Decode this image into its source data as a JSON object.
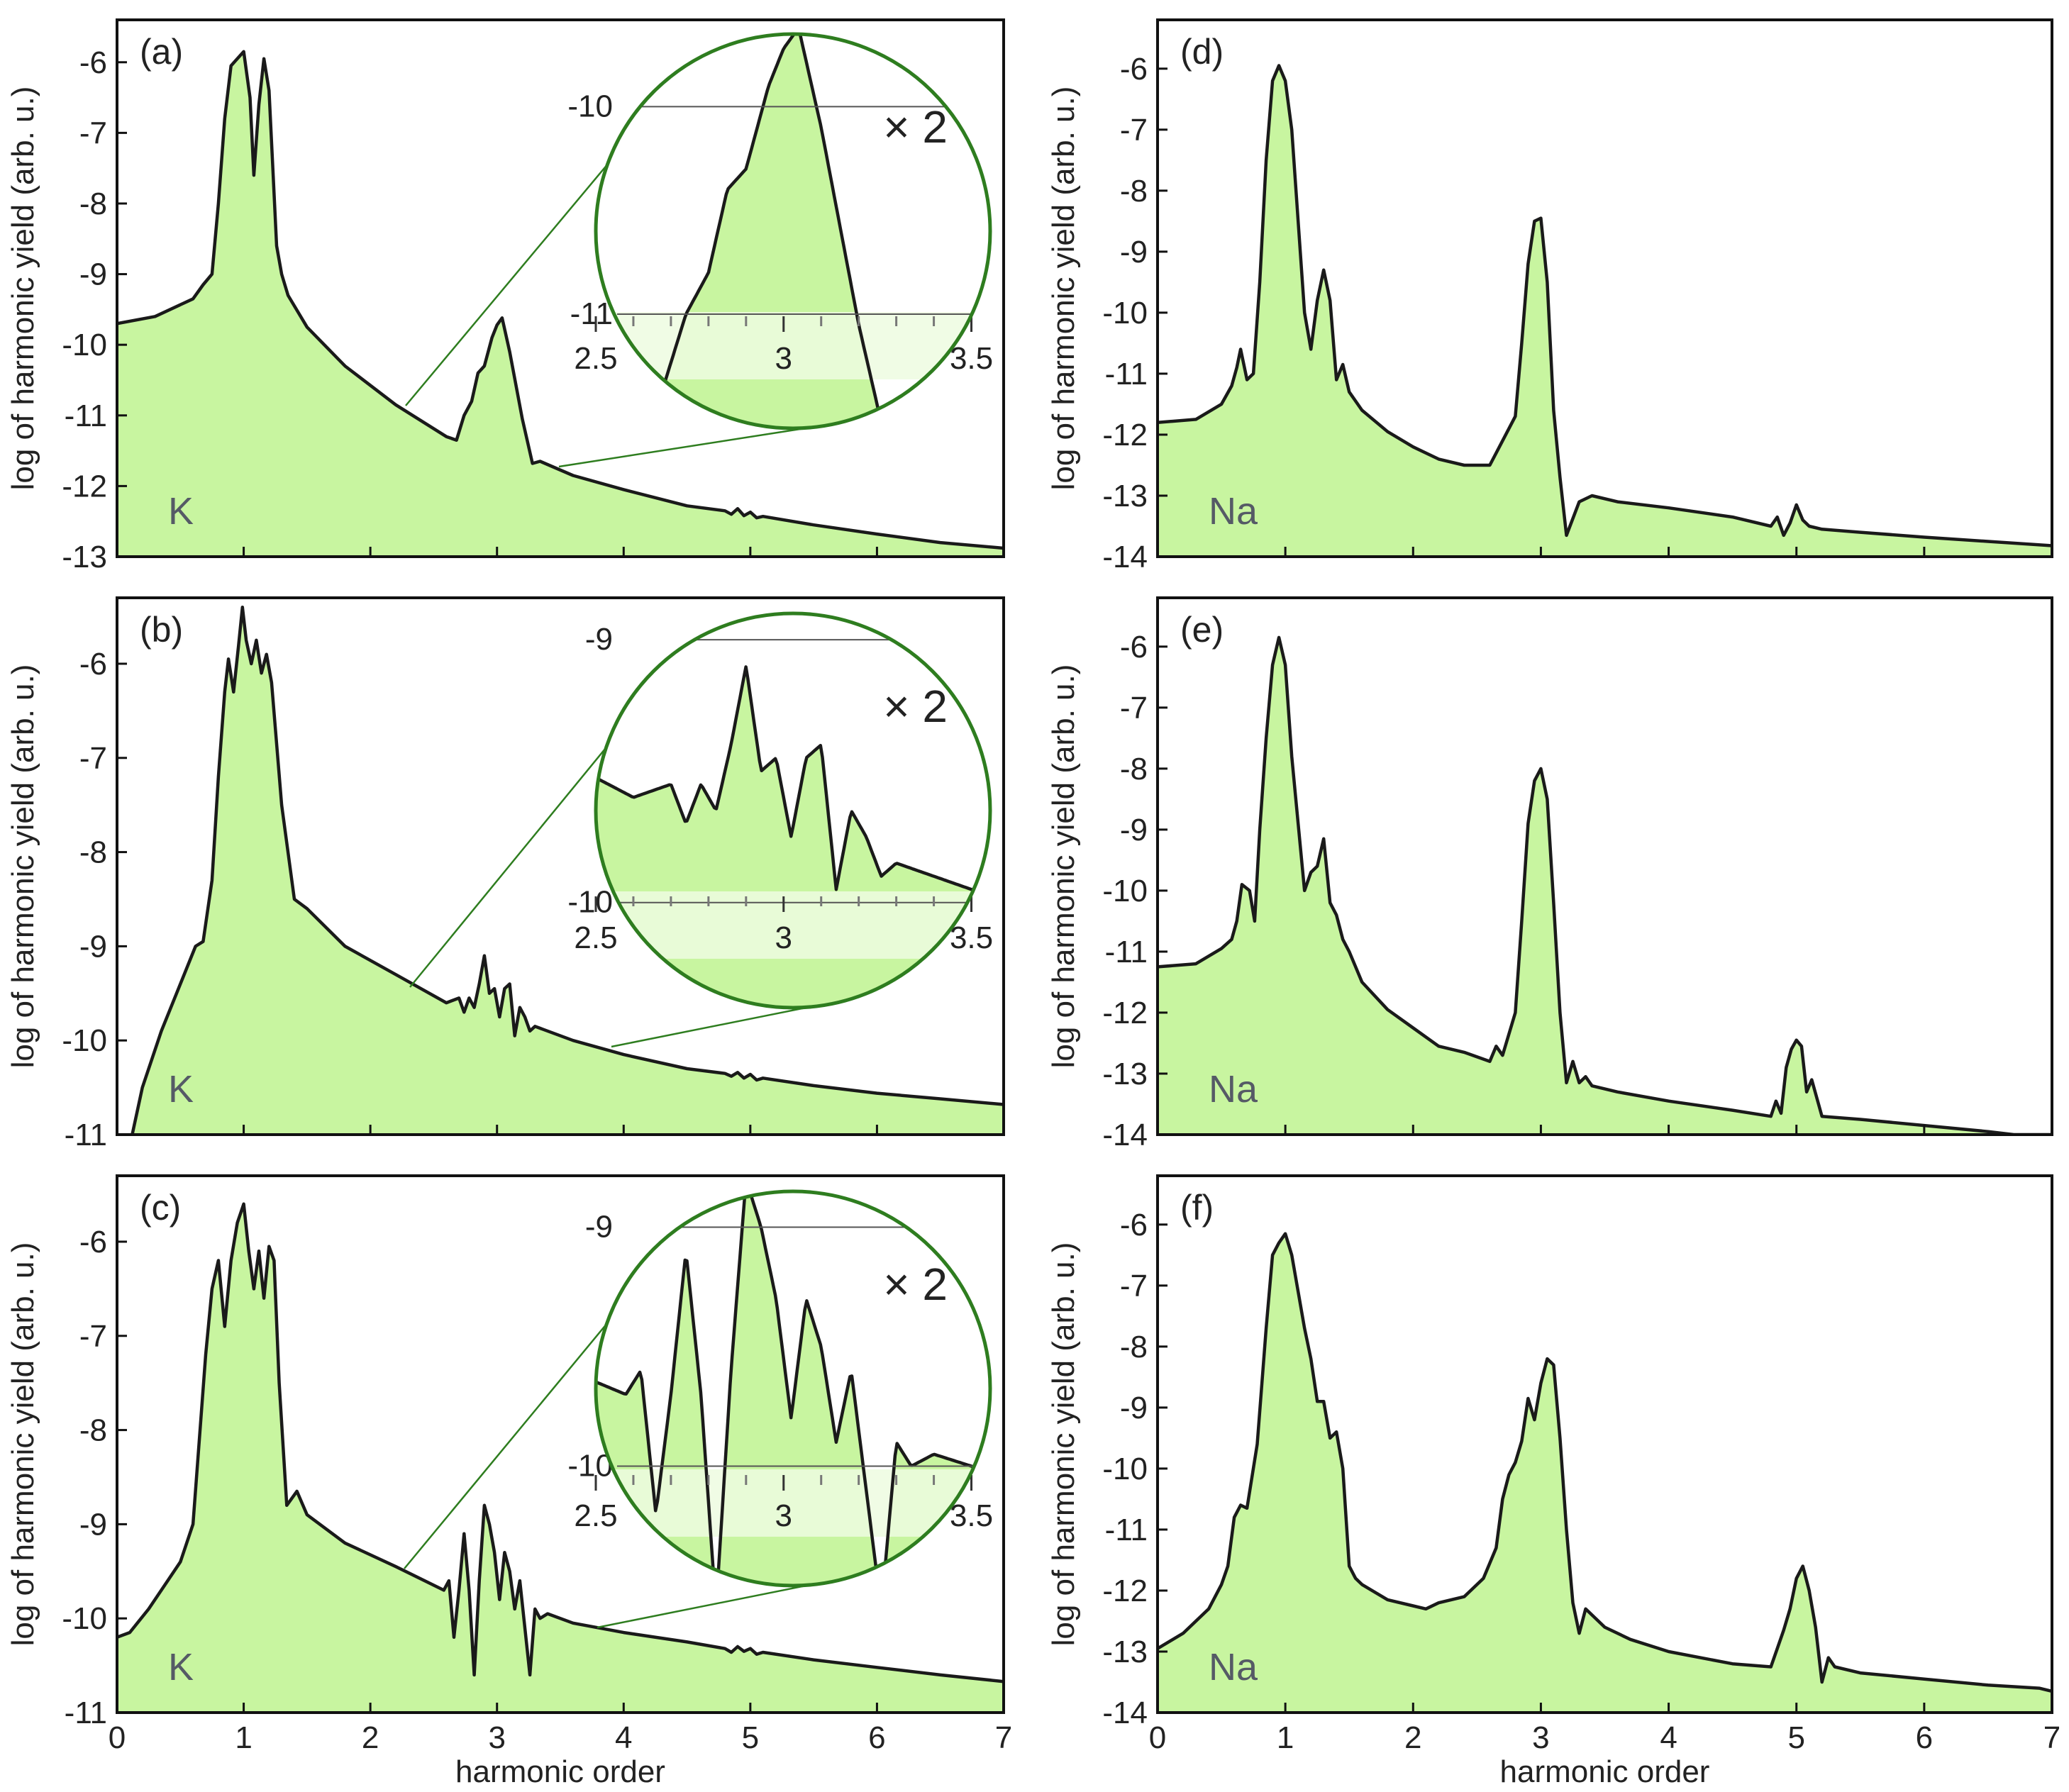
{
  "figure": {
    "xlabel": "harmonic order",
    "ylabel": "log of harmonic yield (arb. u.)",
    "x_ticks": [
      "0",
      "1",
      "2",
      "3",
      "4",
      "5",
      "6",
      "7"
    ]
  },
  "colors": {
    "fill": "#c8f5a0",
    "line": "#1a1a1a",
    "magnifier_ring": "#2e7d1f",
    "magnifier_band": "#edfbe0"
  },
  "chart_data": [
    {
      "id": "a",
      "label": "(a)",
      "element": "K",
      "type": "area",
      "title": "",
      "xlabel": "",
      "ylabel": "log of harmonic yield (arb. u.)",
      "xlim": [
        0,
        7
      ],
      "ylim": [
        -13,
        -5.4
      ],
      "y_ticks": [
        "-6",
        "-7",
        "-8",
        "-9",
        "-10",
        "-11",
        "-12",
        "-13"
      ],
      "x": [
        0,
        0.3,
        0.6,
        0.68,
        0.75,
        0.8,
        0.85,
        0.9,
        0.95,
        1.0,
        1.05,
        1.08,
        1.12,
        1.16,
        1.2,
        1.26,
        1.3,
        1.35,
        1.5,
        1.8,
        2.2,
        2.6,
        2.68,
        2.74,
        2.8,
        2.85,
        2.9,
        2.96,
        3.0,
        3.04,
        3.1,
        3.2,
        3.28,
        3.34,
        3.6,
        4.0,
        4.5,
        4.8,
        4.85,
        4.9,
        4.95,
        5.0,
        5.05,
        5.1,
        5.5,
        6.0,
        6.5,
        7.0
      ],
      "y": [
        -9.7,
        -9.6,
        -9.35,
        -9.15,
        -9.0,
        -8.0,
        -6.8,
        -6.05,
        -5.95,
        -5.85,
        -6.5,
        -7.6,
        -6.6,
        -5.95,
        -6.4,
        -8.6,
        -9.0,
        -9.3,
        -9.75,
        -10.3,
        -10.85,
        -11.3,
        -11.35,
        -11.0,
        -10.8,
        -10.4,
        -10.3,
        -9.9,
        -9.72,
        -9.62,
        -10.1,
        -11.05,
        -11.68,
        -11.65,
        -11.85,
        -12.05,
        -12.28,
        -12.35,
        -12.4,
        -12.32,
        -12.42,
        -12.37,
        -12.45,
        -12.43,
        -12.55,
        -12.68,
        -12.8,
        -12.88
      ],
      "inset": {
        "magnification": "× 2",
        "xlim": [
          2.5,
          3.55
        ],
        "ylim": [
          -11.55,
          -9.65
        ],
        "gridlines": [
          {
            "label": "-10",
            "value": -10
          },
          {
            "label": "-11",
            "value": -11
          }
        ],
        "ticks": [
          "2.5",
          "3",
          "3.5"
        ]
      }
    },
    {
      "id": "b",
      "label": "(b)",
      "element": "K",
      "type": "area",
      "title": "",
      "xlabel": "",
      "ylabel": "log of harmonic yield (arb. u.)",
      "xlim": [
        0,
        7
      ],
      "ylim": [
        -11,
        -5.3
      ],
      "y_ticks": [
        "-6",
        "-7",
        "-8",
        "-9",
        "-10",
        "-11"
      ],
      "x": [
        0.12,
        0.2,
        0.35,
        0.5,
        0.62,
        0.68,
        0.75,
        0.8,
        0.85,
        0.88,
        0.92,
        0.96,
        0.99,
        1.02,
        1.06,
        1.1,
        1.14,
        1.18,
        1.22,
        1.3,
        1.4,
        1.5,
        1.8,
        2.2,
        2.6,
        2.7,
        2.74,
        2.78,
        2.82,
        2.86,
        2.9,
        2.94,
        2.98,
        3.02,
        3.06,
        3.1,
        3.14,
        3.18,
        3.22,
        3.26,
        3.3,
        3.36,
        3.6,
        4.0,
        4.5,
        4.8,
        4.85,
        4.9,
        4.95,
        5.0,
        5.05,
        5.1,
        5.5,
        6.0,
        6.5,
        7.0
      ],
      "y": [
        -11.0,
        -10.5,
        -9.9,
        -9.4,
        -9.0,
        -8.95,
        -8.3,
        -7.2,
        -6.3,
        -5.95,
        -6.3,
        -5.8,
        -5.4,
        -5.75,
        -6.0,
        -5.75,
        -6.1,
        -5.9,
        -6.2,
        -7.5,
        -8.5,
        -8.6,
        -9.0,
        -9.3,
        -9.6,
        -9.55,
        -9.7,
        -9.55,
        -9.65,
        -9.4,
        -9.1,
        -9.5,
        -9.45,
        -9.75,
        -9.45,
        -9.4,
        -9.95,
        -9.65,
        -9.75,
        -9.9,
        -9.85,
        -9.88,
        -10.0,
        -10.15,
        -10.3,
        -10.35,
        -10.38,
        -10.34,
        -10.4,
        -10.36,
        -10.42,
        -10.4,
        -10.48,
        -10.56,
        -10.62,
        -10.68
      ],
      "inset": {
        "magnification": "× 2",
        "xlim": [
          2.5,
          3.55
        ],
        "ylim": [
          -10.4,
          -8.9
        ],
        "gridlines": [
          {
            "label": "-9",
            "value": -9
          },
          {
            "label": "-10",
            "value": -10
          }
        ],
        "ticks": [
          "2.5",
          "3",
          "3.5"
        ]
      }
    },
    {
      "id": "c",
      "label": "(c)",
      "element": "K",
      "type": "area",
      "title": "",
      "xlabel": "harmonic order",
      "ylabel": "log of harmonic yield (arb. u.)",
      "xlim": [
        0,
        7
      ],
      "ylim": [
        -11,
        -5.3
      ],
      "y_ticks": [
        "-6",
        "-7",
        "-8",
        "-9",
        "-10",
        "-11"
      ],
      "x": [
        0,
        0.1,
        0.25,
        0.4,
        0.5,
        0.6,
        0.7,
        0.75,
        0.8,
        0.85,
        0.9,
        0.95,
        1.0,
        1.04,
        1.08,
        1.12,
        1.16,
        1.2,
        1.24,
        1.28,
        1.34,
        1.42,
        1.5,
        1.8,
        2.2,
        2.58,
        2.62,
        2.66,
        2.7,
        2.74,
        2.78,
        2.82,
        2.86,
        2.9,
        2.94,
        2.98,
        3.02,
        3.06,
        3.1,
        3.14,
        3.18,
        3.22,
        3.26,
        3.3,
        3.34,
        3.4,
        3.6,
        4.0,
        4.5,
        4.8,
        4.85,
        4.9,
        4.95,
        5.0,
        5.05,
        5.1,
        5.5,
        6.0,
        6.5,
        7.0
      ],
      "y": [
        -10.2,
        -10.15,
        -9.9,
        -9.6,
        -9.4,
        -9.0,
        -7.2,
        -6.5,
        -6.2,
        -6.9,
        -6.2,
        -5.8,
        -5.6,
        -6.1,
        -6.5,
        -6.1,
        -6.6,
        -6.05,
        -6.2,
        -7.5,
        -8.8,
        -8.65,
        -8.9,
        -9.2,
        -9.45,
        -9.7,
        -9.6,
        -10.2,
        -9.7,
        -9.1,
        -9.7,
        -10.6,
        -9.6,
        -8.8,
        -9.0,
        -9.3,
        -9.8,
        -9.3,
        -9.5,
        -9.9,
        -9.6,
        -10.1,
        -10.6,
        -9.9,
        -10.0,
        -9.95,
        -10.05,
        -10.15,
        -10.25,
        -10.32,
        -10.36,
        -10.3,
        -10.35,
        -10.32,
        -10.38,
        -10.36,
        -10.44,
        -10.52,
        -10.6,
        -10.67
      ],
      "inset": {
        "magnification": "× 2",
        "xlim": [
          2.5,
          3.55
        ],
        "ylim": [
          -10.5,
          -8.85
        ],
        "gridlines": [
          {
            "label": "-9",
            "value": -9
          },
          {
            "label": "-10",
            "value": -10
          }
        ],
        "ticks": [
          "2.5",
          "3",
          "3.5"
        ]
      }
    },
    {
      "id": "d",
      "label": "(d)",
      "element": "Na",
      "type": "area",
      "title": "",
      "xlabel": "",
      "ylabel": "log of harmonic yield (arb. u.)",
      "xlim": [
        0,
        7
      ],
      "ylim": [
        -14,
        -5.2
      ],
      "y_ticks": [
        "-6",
        "-7",
        "-8",
        "-9",
        "-10",
        "-11",
        "-12",
        "-13",
        "-14"
      ],
      "x": [
        0,
        0.3,
        0.5,
        0.58,
        0.62,
        0.65,
        0.7,
        0.75,
        0.8,
        0.85,
        0.9,
        0.95,
        1.0,
        1.05,
        1.1,
        1.15,
        1.2,
        1.25,
        1.3,
        1.35,
        1.4,
        1.45,
        1.5,
        1.6,
        1.8,
        2.0,
        2.2,
        2.4,
        2.6,
        2.7,
        2.8,
        2.85,
        2.9,
        2.95,
        3.0,
        3.05,
        3.1,
        3.15,
        3.2,
        3.3,
        3.4,
        3.6,
        4.0,
        4.5,
        4.8,
        4.85,
        4.9,
        4.95,
        5.0,
        5.05,
        5.1,
        5.2,
        5.5,
        6.0,
        6.5,
        7.0
      ],
      "y": [
        -11.8,
        -11.75,
        -11.5,
        -11.2,
        -10.9,
        -10.6,
        -11.1,
        -11.0,
        -9.5,
        -7.5,
        -6.2,
        -5.95,
        -6.2,
        -7.0,
        -8.5,
        -10.0,
        -10.6,
        -9.8,
        -9.3,
        -9.8,
        -11.1,
        -10.85,
        -11.3,
        -11.6,
        -11.95,
        -12.2,
        -12.4,
        -12.5,
        -12.5,
        -12.1,
        -11.7,
        -10.5,
        -9.2,
        -8.5,
        -8.45,
        -9.5,
        -11.6,
        -12.7,
        -13.65,
        -13.1,
        -13.0,
        -13.1,
        -13.2,
        -13.35,
        -13.5,
        -13.35,
        -13.65,
        -13.45,
        -13.15,
        -13.4,
        -13.5,
        -13.55,
        -13.6,
        -13.68,
        -13.75,
        -13.82
      ],
      "inset": null
    },
    {
      "id": "e",
      "label": "(e)",
      "element": "Na",
      "type": "area",
      "title": "",
      "xlabel": "",
      "ylabel": "log of harmonic yield (arb. u.)",
      "xlim": [
        0,
        7
      ],
      "ylim": [
        -14,
        -5.2
      ],
      "y_ticks": [
        "-6",
        "-7",
        "-8",
        "-9",
        "-10",
        "-11",
        "-12",
        "-13",
        "-14"
      ],
      "x": [
        0,
        0.3,
        0.5,
        0.58,
        0.62,
        0.66,
        0.72,
        0.76,
        0.8,
        0.85,
        0.9,
        0.95,
        1.0,
        1.05,
        1.1,
        1.15,
        1.2,
        1.25,
        1.3,
        1.35,
        1.4,
        1.45,
        1.5,
        1.6,
        1.8,
        2.0,
        2.2,
        2.4,
        2.6,
        2.65,
        2.7,
        2.8,
        2.85,
        2.9,
        2.95,
        3.0,
        3.05,
        3.1,
        3.15,
        3.2,
        3.25,
        3.3,
        3.35,
        3.4,
        3.6,
        4.0,
        4.5,
        4.8,
        4.84,
        4.88,
        4.92,
        4.96,
        5.0,
        5.04,
        5.08,
        5.12,
        5.2,
        5.5,
        6.0,
        6.5,
        6.7,
        7.0
      ],
      "y": [
        -11.25,
        -11.2,
        -10.95,
        -10.8,
        -10.5,
        -9.9,
        -10.0,
        -10.5,
        -9.0,
        -7.5,
        -6.3,
        -5.85,
        -6.3,
        -7.8,
        -8.9,
        -10.0,
        -9.7,
        -9.6,
        -9.15,
        -10.2,
        -10.4,
        -10.8,
        -11.0,
        -11.5,
        -11.95,
        -12.25,
        -12.55,
        -12.65,
        -12.8,
        -12.55,
        -12.7,
        -12.0,
        -10.5,
        -8.9,
        -8.2,
        -8.0,
        -8.5,
        -10.2,
        -12.0,
        -13.15,
        -12.8,
        -13.15,
        -13.05,
        -13.2,
        -13.3,
        -13.45,
        -13.6,
        -13.7,
        -13.45,
        -13.65,
        -12.9,
        -12.6,
        -12.45,
        -12.55,
        -13.3,
        -13.1,
        -13.7,
        -13.75,
        -13.85,
        -13.95,
        -14.0,
        -14.0
      ],
      "inset": null
    },
    {
      "id": "f",
      "label": "(f)",
      "element": "Na",
      "type": "area",
      "title": "",
      "xlabel": "harmonic order",
      "ylabel": "log of harmonic yield (arb. u.)",
      "xlim": [
        0,
        7
      ],
      "ylim": [
        -14,
        -5.2
      ],
      "y_ticks": [
        "-6",
        "-7",
        "-8",
        "-9",
        "-10",
        "-11",
        "-12",
        "-13",
        "-14"
      ],
      "x": [
        0,
        0.2,
        0.4,
        0.5,
        0.55,
        0.6,
        0.65,
        0.7,
        0.78,
        0.85,
        0.9,
        0.95,
        1.0,
        1.05,
        1.1,
        1.15,
        1.2,
        1.25,
        1.3,
        1.35,
        1.4,
        1.45,
        1.5,
        1.55,
        1.6,
        1.8,
        2.0,
        2.1,
        2.2,
        2.4,
        2.55,
        2.65,
        2.7,
        2.75,
        2.8,
        2.85,
        2.9,
        2.95,
        3.0,
        3.05,
        3.1,
        3.15,
        3.2,
        3.25,
        3.3,
        3.35,
        3.4,
        3.5,
        3.7,
        4.0,
        4.5,
        4.8,
        4.85,
        4.9,
        4.95,
        5.0,
        5.05,
        5.1,
        5.15,
        5.2,
        5.25,
        5.3,
        5.5,
        6.0,
        6.5,
        6.9,
        7.0
      ],
      "y": [
        -12.95,
        -12.7,
        -12.3,
        -11.9,
        -11.6,
        -10.8,
        -10.6,
        -10.65,
        -9.6,
        -7.7,
        -6.5,
        -6.3,
        -6.15,
        -6.5,
        -7.1,
        -7.7,
        -8.2,
        -8.9,
        -8.9,
        -9.5,
        -9.4,
        -10.0,
        -11.6,
        -11.8,
        -11.9,
        -12.15,
        -12.25,
        -12.3,
        -12.2,
        -12.1,
        -11.8,
        -11.3,
        -10.5,
        -10.1,
        -9.9,
        -9.55,
        -8.85,
        -9.2,
        -8.6,
        -8.2,
        -8.3,
        -9.5,
        -11.0,
        -12.2,
        -12.7,
        -12.3,
        -12.4,
        -12.6,
        -12.8,
        -13.0,
        -13.2,
        -13.25,
        -12.95,
        -12.65,
        -12.3,
        -11.8,
        -11.6,
        -12.0,
        -12.6,
        -13.5,
        -13.1,
        -13.25,
        -13.35,
        -13.45,
        -13.55,
        -13.6,
        -13.65
      ],
      "inset": null
    }
  ]
}
